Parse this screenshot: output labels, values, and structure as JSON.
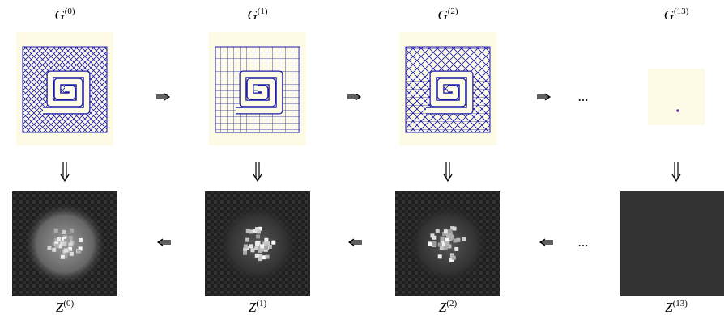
{
  "top_labels": [
    {
      "base": "G",
      "sup": "(0)"
    },
    {
      "base": "G",
      "sup": "(1)"
    },
    {
      "base": "G",
      "sup": "(2)"
    },
    {
      "base": "G",
      "sup": "(13)"
    }
  ],
  "bottom_labels": [
    {
      "base": "Z",
      "sup": "(0)"
    },
    {
      "base": "Z",
      "sup": "(1)"
    },
    {
      "base": "Z",
      "sup": "(2)"
    },
    {
      "base": "Z",
      "sup": "(13)"
    }
  ],
  "continuation": [
    "...",
    "..."
  ]
}
